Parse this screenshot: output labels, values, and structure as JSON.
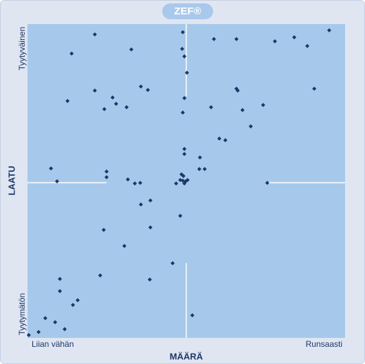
{
  "chart_data": {
    "type": "scatter",
    "logo": "ZEF®",
    "x_label": "MÄÄRÄ",
    "y_label": "LAATU",
    "xlim": [
      0,
      100
    ],
    "ylim": [
      0,
      100
    ],
    "xticks": [
      {
        "value": 0,
        "label": "Liian vähän"
      },
      {
        "value": 100,
        "label": "Runsaasti"
      }
    ],
    "yticks": [
      {
        "value": 0,
        "label": "Tyytymätön"
      },
      {
        "value": 100,
        "label": "Tyytyväinen"
      }
    ],
    "color": "#1c3768",
    "x": [
      21.2,
      13.9,
      48.9,
      48.7,
      49.4,
      32.7,
      58.7,
      65.8,
      77.9,
      84.0,
      88.1,
      95.0,
      50.2,
      21.2,
      12.6,
      26.8,
      27.9,
      24.2,
      31.2,
      35.7,
      37.9,
      49.4,
      48.9,
      65.8,
      66.2,
      57.8,
      67.7,
      74.2,
      90.3,
      70.3,
      60.4,
      62.3,
      49.4,
      49.4,
      54.3,
      54.1,
      55.8,
      48.5,
      49.1,
      7.4,
      9.3,
      24.9,
      24.9,
      31.6,
      33.8,
      35.5,
      46.8,
      48.1,
      48.9,
      49.8,
      50.4,
      49.4,
      75.5,
      38.7,
      35.7,
      38.7,
      48.1,
      24.0,
      30.5,
      45.7,
      22.9,
      38.5,
      10.2,
      10.2,
      15.8,
      14.3,
      5.6,
      8.7,
      11.7,
      3.5,
      0.4,
      51.9
    ],
    "values": [
      96.7,
      90.6,
      97.4,
      92.1,
      89.7,
      91.9,
      95.2,
      95.2,
      94.5,
      95.8,
      93.0,
      98.0,
      84.5,
      78.8,
      75.5,
      76.6,
      74.6,
      72.9,
      73.5,
      80.1,
      79.0,
      76.4,
      71.8,
      79.4,
      78.8,
      73.5,
      72.6,
      74.2,
      79.4,
      67.4,
      63.5,
      63.0,
      60.2,
      58.6,
      57.5,
      53.8,
      53.8,
      52.1,
      51.6,
      54.0,
      49.9,
      53.0,
      51.2,
      50.5,
      49.2,
      49.4,
      49.2,
      50.3,
      50.1,
      49.9,
      50.3,
      49.2,
      49.4,
      43.8,
      42.5,
      35.2,
      38.9,
      34.4,
      29.3,
      23.8,
      19.9,
      18.6,
      18.8,
      14.9,
      12.0,
      10.5,
      6.3,
      5.0,
      2.8,
      1.9,
      0.9,
      7.2
    ]
  }
}
